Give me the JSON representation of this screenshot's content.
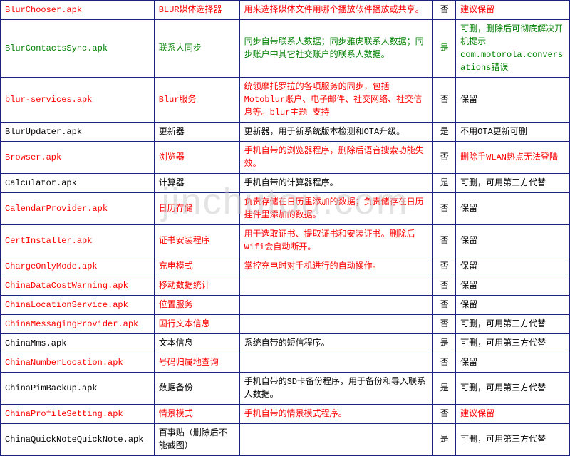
{
  "watermark": "jinchutou.com",
  "rows": [
    {
      "file": "BlurChooser.apk",
      "name": "BLUR媒体选择器",
      "desc": "用来选择媒体文件用哪个播放软件播放或共享。",
      "flag": "否",
      "note": "建议保留",
      "fileCls": "red",
      "nameCls": "red",
      "descCls": "red",
      "flagCls": "black",
      "noteCls": "red"
    },
    {
      "file": "BlurContactsSync.apk",
      "name": "联系人同步",
      "desc": "同步自带联系人数据；同步雅虎联系人数据；同步账户中其它社交账户的联系人数据。",
      "flag": "是",
      "note": "可删，删除后可彻底解决开机提示com.motorola.conversations错误",
      "fileCls": "green",
      "nameCls": "green",
      "descCls": "green",
      "flagCls": "green",
      "noteCls": "green"
    },
    {
      "file": "blur-services.apk",
      "name": "Blur服务",
      "desc": "统领摩托罗拉的各项服务的同步，包括Motoblur账户、电子邮件、社交网络、社交信息等。blur主题 支持",
      "flag": "否",
      "note": "保留",
      "fileCls": "red",
      "nameCls": "red",
      "descCls": "red",
      "flagCls": "black",
      "noteCls": "black"
    },
    {
      "file": "BlurUpdater.apk",
      "name": "更新器",
      "desc": "更新器，用于新系统版本检测和OTA升级。",
      "flag": "是",
      "note": "不用OTA更新可删",
      "fileCls": "black",
      "nameCls": "black",
      "descCls": "black",
      "flagCls": "black",
      "noteCls": "black"
    },
    {
      "file": "Browser.apk",
      "name": "浏览器",
      "desc": "手机自带的浏览器程序，删除后语音搜索功能失效。",
      "flag": "否",
      "note": "删除手WLAN热点无法登陆",
      "fileCls": "red",
      "nameCls": "red",
      "descCls": "red",
      "flagCls": "black",
      "noteCls": "red"
    },
    {
      "file": "Calculator.apk",
      "name": "计算器",
      "desc": "手机自带的计算器程序。",
      "flag": "是",
      "note": "可删，可用第三方代替",
      "fileCls": "black",
      "nameCls": "black",
      "descCls": "black",
      "flagCls": "black",
      "noteCls": "black"
    },
    {
      "file": "CalendarProvider.apk",
      "name": "日历存储",
      "desc": "负责存储在日历里添加的数据；负责储存在日历挂件里添加的数据。",
      "flag": "否",
      "note": "保留",
      "fileCls": "red",
      "nameCls": "red",
      "descCls": "red",
      "flagCls": "black",
      "noteCls": "black"
    },
    {
      "file": "CertInstaller.apk",
      "name": "证书安装程序",
      "desc": "用于选取证书、提取证书和安装证书。删除后Wifi会自动断开。",
      "flag": "否",
      "note": "保留",
      "fileCls": "red",
      "nameCls": "red",
      "descCls": "red",
      "flagCls": "black",
      "noteCls": "black"
    },
    {
      "file": "ChargeOnlyMode.apk",
      "name": "充电模式",
      "desc": "掌控充电时对手机进行的自动操作。",
      "flag": "否",
      "note": "保留",
      "fileCls": "red",
      "nameCls": "red",
      "descCls": "red",
      "flagCls": "black",
      "noteCls": "black"
    },
    {
      "file": "ChinaDataCostWarning.apk",
      "name": "移动数据统计",
      "desc": "",
      "flag": "否",
      "note": "保留",
      "fileCls": "red",
      "nameCls": "red",
      "descCls": "red",
      "flagCls": "black",
      "noteCls": "black"
    },
    {
      "file": "ChinaLocationService.apk",
      "name": "位置服务",
      "desc": "",
      "flag": "否",
      "note": "保留",
      "fileCls": "red",
      "nameCls": "red",
      "descCls": "red",
      "flagCls": "black",
      "noteCls": "black"
    },
    {
      "file": "ChinaMessagingProvider.apk",
      "name": "国行文本信息",
      "desc": "",
      "flag": "否",
      "note": "可删，可用第三方代替",
      "fileCls": "red",
      "nameCls": "red",
      "descCls": "red",
      "flagCls": "black",
      "noteCls": "black"
    },
    {
      "file": "ChinaMms.apk",
      "name": "文本信息",
      "desc": "系统自带的短信程序。",
      "flag": "是",
      "note": "可删，可用第三方代替",
      "fileCls": "black",
      "nameCls": "black",
      "descCls": "black",
      "flagCls": "black",
      "noteCls": "black"
    },
    {
      "file": "ChinaNumberLocation.apk",
      "name": "号码归属地查询",
      "desc": "",
      "flag": "否",
      "note": "保留",
      "fileCls": "red",
      "nameCls": "red",
      "descCls": "red",
      "flagCls": "black",
      "noteCls": "black"
    },
    {
      "file": "ChinaPimBackup.apk",
      "name": "数据备份",
      "desc": "手机自带的SD卡备份程序，用于备份和导入联系人数据。",
      "flag": "是",
      "note": "可删，可用第三方代替",
      "fileCls": "black",
      "nameCls": "black",
      "descCls": "black",
      "flagCls": "black",
      "noteCls": "black"
    },
    {
      "file": "ChinaProfileSetting.apk",
      "name": "情景模式",
      "desc": "手机自带的情景模式程序。",
      "flag": "否",
      "note": "建议保留",
      "fileCls": "red",
      "nameCls": "red",
      "descCls": "red",
      "flagCls": "black",
      "noteCls": "red"
    },
    {
      "file": "ChinaQuickNoteQuickNote.apk",
      "name": "百事贴（删除后不能截图）",
      "desc": "",
      "flag": "是",
      "note": "可删，可用第三方代替",
      "fileCls": "black",
      "nameCls": "black",
      "descCls": "black",
      "flagCls": "black",
      "noteCls": "black"
    }
  ]
}
